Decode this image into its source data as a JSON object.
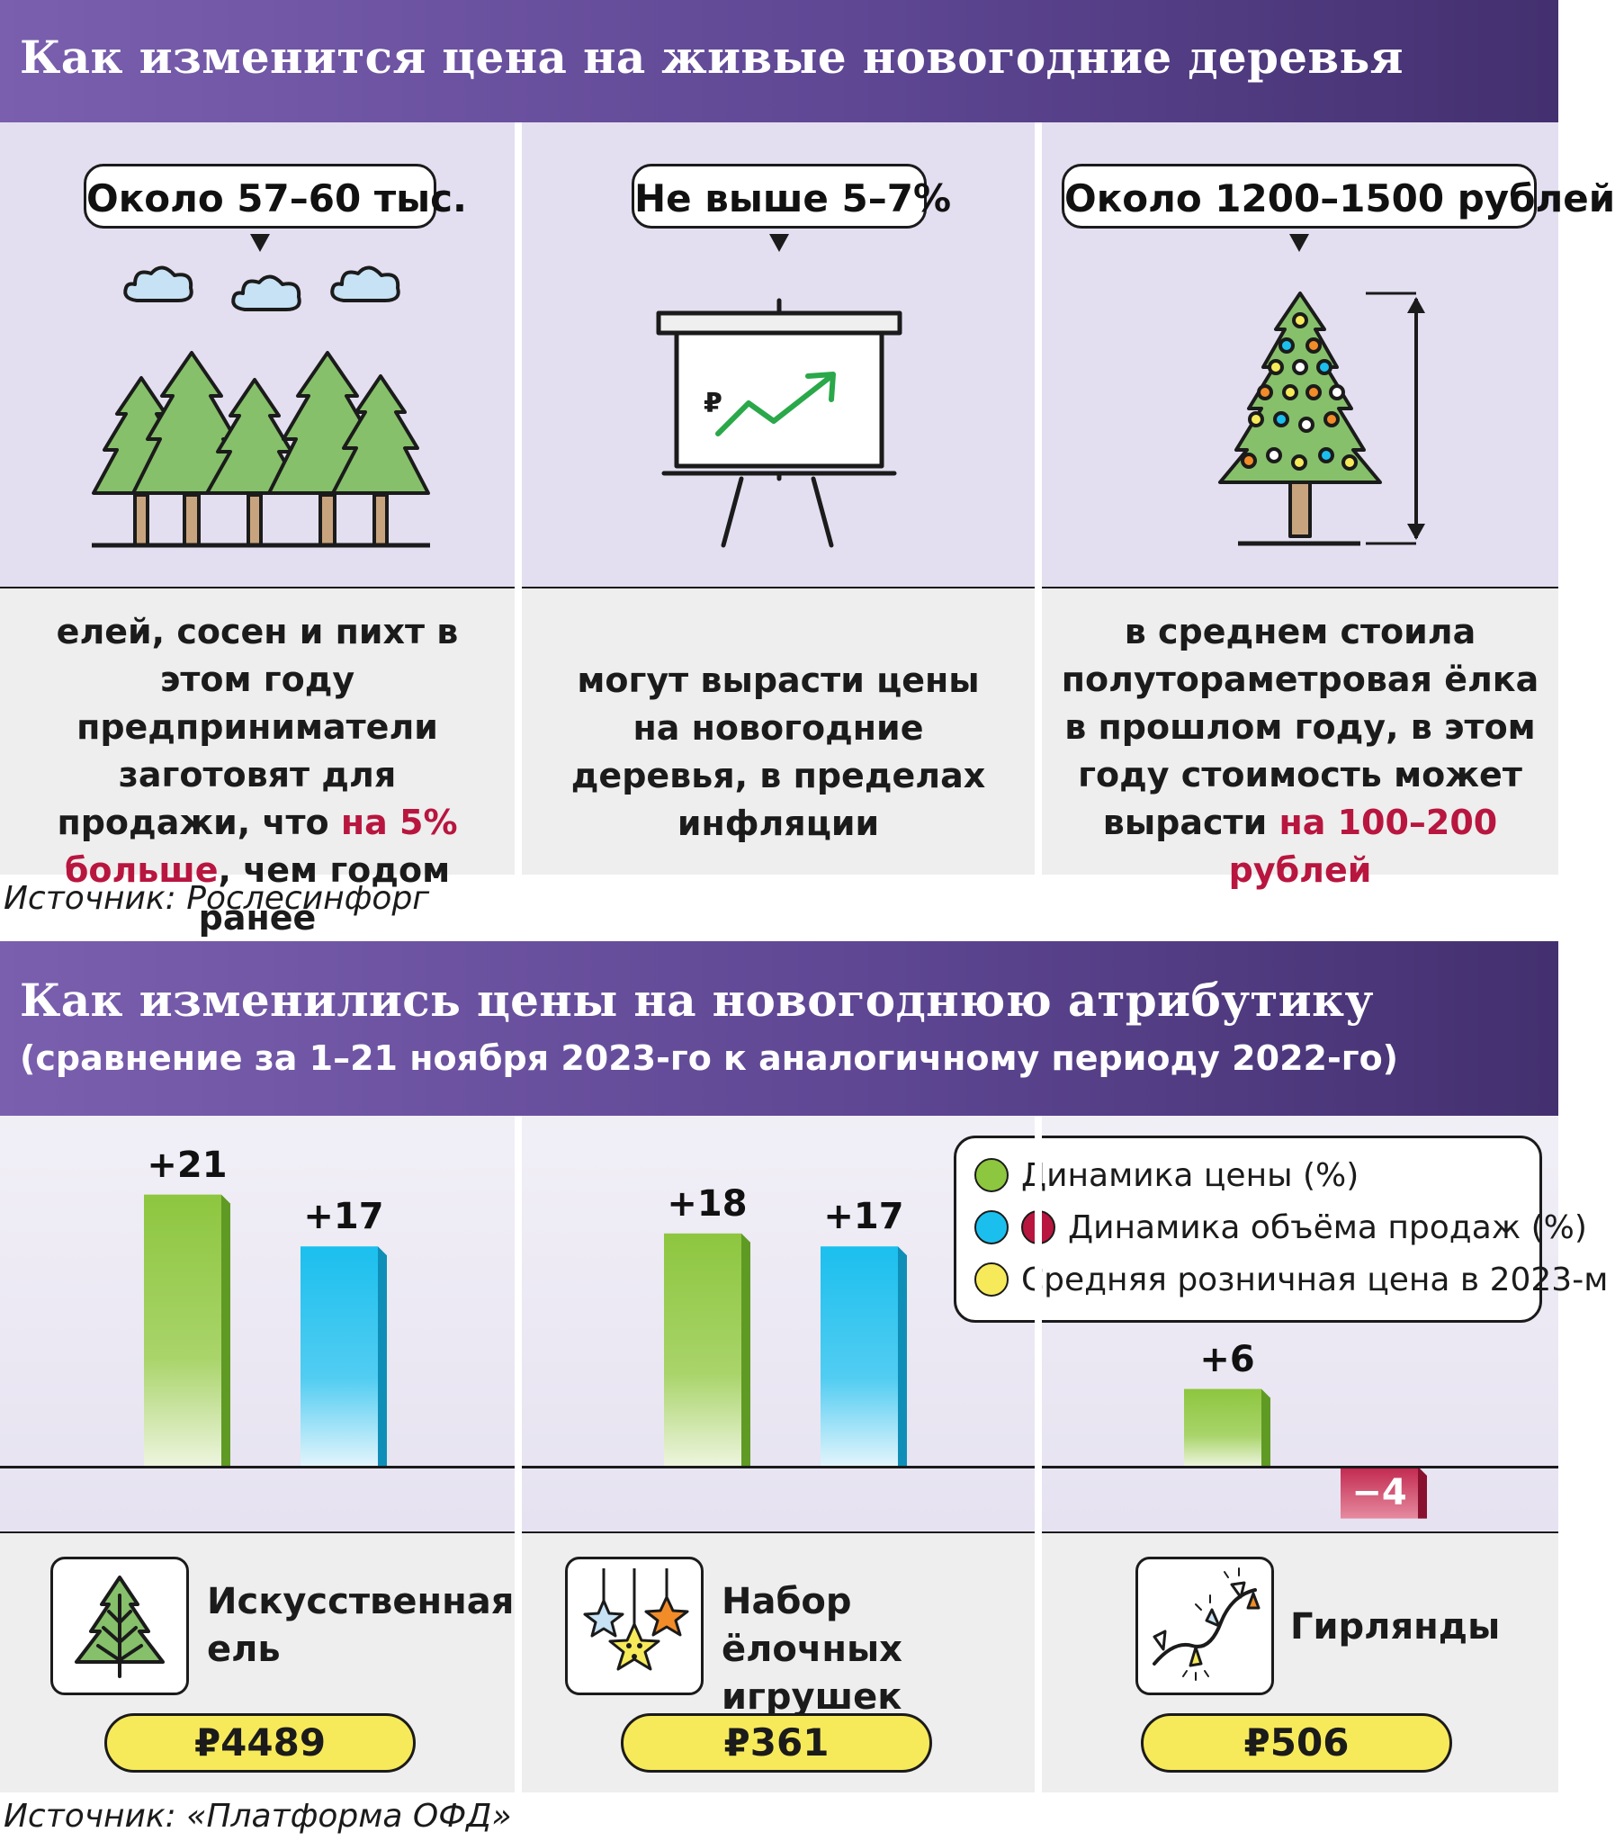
{
  "section1": {
    "title": "Как изменится цена на живые новогодние деревья",
    "bubbles": [
      "Около 57–60 тыс.",
      "Не выше 5–7%",
      "Около 1200–1500 рублей"
    ],
    "captions": [
      {
        "before": "елей, сосен и пихт в этом году предприниматели заготовят для продажи, что ",
        "accent": "на 5% больше",
        "after": ", чем годом ранее"
      },
      {
        "before": "могут вырасти цены на новогодние деревья, в пределах инфляции",
        "accent": "",
        "after": ""
      },
      {
        "before": "в среднем стоила полутораметровая ёлка в прошлом году, в этом году стоимость может вырасти ",
        "accent": "на 100–200 рублей",
        "after": ""
      }
    ],
    "source": "Источник: Рослесинфорг"
  },
  "section2": {
    "title": "Как изменились цены на новогоднюю атрибутику",
    "subtitle": "(сравнение за 1–21 ноября 2023-го к аналогичному периоду 2022-го)",
    "legend": [
      {
        "label": "Динамика цены (%)",
        "colors": [
          "#8dc63f"
        ]
      },
      {
        "label": "Динамика объёма продаж (%)",
        "colors": [
          "#1bbfee",
          "#b8163f"
        ]
      },
      {
        "label": "Средняя розничная цена в 2023-м",
        "colors": [
          "#f7ea5a"
        ]
      }
    ],
    "source": "Источник: «Платформа ОФД»"
  },
  "chart_data": {
    "type": "bar",
    "categories": [
      "Искусственная ель",
      "Набор ёлочных игрушек",
      "Гирлянды"
    ],
    "series": [
      {
        "name": "Динамика цены (%)",
        "values": [
          21,
          18,
          6
        ],
        "labels": [
          "+21",
          "+18",
          "+6"
        ],
        "color": "#8dc63f"
      },
      {
        "name": "Динамика объёма продаж (%)",
        "values": [
          17,
          17,
          -4
        ],
        "labels": [
          "+17",
          "+17",
          "−4"
        ],
        "color": "#1bbfee",
        "negative_color": "#b8163f"
      }
    ],
    "avg_retail_price_2023": [
      "₽4489",
      "₽361",
      "₽506"
    ],
    "ylim": [
      -6,
      22
    ]
  },
  "colors": {
    "accent": "#b8163f",
    "banner": "#5f4794",
    "panel": "#e3dff0",
    "green": "#8dc63f",
    "blue": "#1bbfee",
    "yellow": "#f7ea5a"
  }
}
